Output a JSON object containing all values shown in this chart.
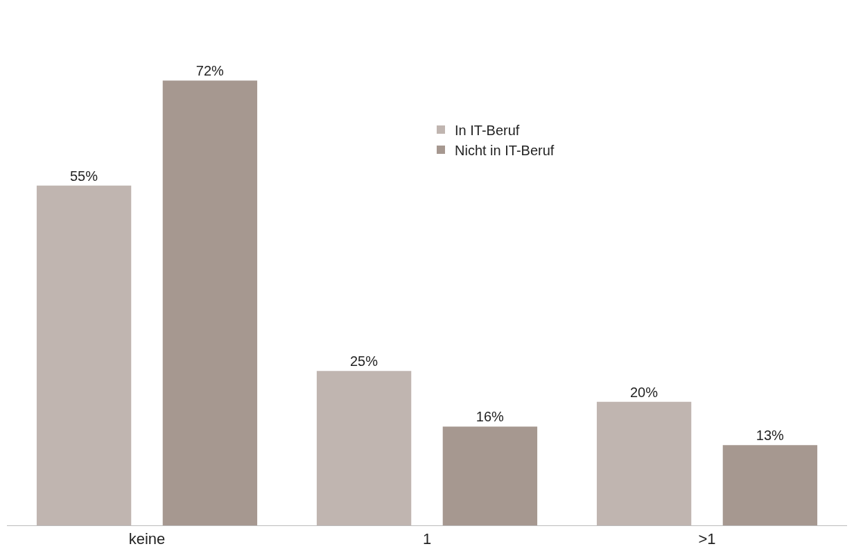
{
  "chart_data": {
    "type": "bar",
    "categories": [
      "keine",
      "1",
      ">1"
    ],
    "series": [
      {
        "name": "In IT-Beruf",
        "color": "#c0b5b0",
        "values": [
          55,
          25,
          20
        ],
        "value_labels": [
          "55%",
          "25%",
          "20%"
        ]
      },
      {
        "name": "Nicht in IT-Beruf",
        "color": "#a69890",
        "values": [
          72,
          16,
          13
        ],
        "value_labels": [
          "72%",
          "16%",
          "13%"
        ]
      }
    ],
    "legend": "top right"
  }
}
